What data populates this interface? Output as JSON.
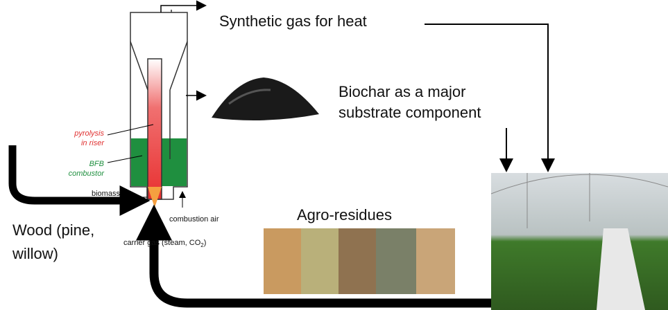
{
  "labels": {
    "syngas": "Synthetic gas for heat",
    "biochar": [
      "Biochar as a major",
      "substrate component"
    ],
    "pyrolysis": [
      "pyrolysis",
      "in riser"
    ],
    "bfb": [
      "BFB",
      "combustor"
    ],
    "biomass": "biomass",
    "combustion_air": "combustion air",
    "carrier_gas": {
      "text": "carrier gas (steam, CO",
      "sub": "2",
      "end": ")"
    },
    "wood": [
      "Wood (pine,",
      "willow)"
    ],
    "agro": "Agro-residues"
  }
}
